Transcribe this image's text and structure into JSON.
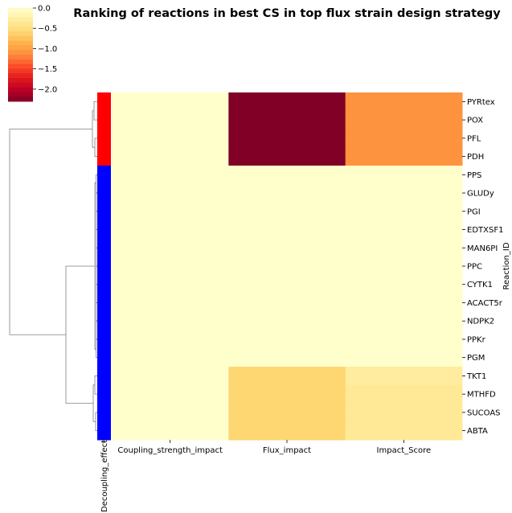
{
  "chart_data": {
    "type": "heatmap",
    "title": "Ranking of reactions in best CS in top flux strain design strategy",
    "ylabel": "Reaction_ID",
    "row_color_label": "Decoupling_effect",
    "columns": [
      "Coupling_strength_impact",
      "Flux_impact",
      "Impact_Score"
    ],
    "rows": [
      "PYRtex",
      "POX",
      "PFL",
      "PDH",
      "PPS",
      "GLUDy",
      "PGI",
      "EDTXSF1",
      "MAN6PI",
      "PPC",
      "CYTK1",
      "ACACT5r",
      "NDPK2",
      "PPKr",
      "PGM",
      "TKT1",
      "MTHFD",
      "SUCOAS",
      "ABTA"
    ],
    "values": [
      [
        0,
        -2.3,
        -1.1
      ],
      [
        0,
        -2.3,
        -1.1
      ],
      [
        0,
        -2.3,
        -1.1
      ],
      [
        0,
        -2.3,
        -1.1
      ],
      [
        0,
        0,
        0
      ],
      [
        0,
        0,
        0
      ],
      [
        0,
        0,
        0
      ],
      [
        0,
        0,
        0
      ],
      [
        0,
        0,
        0
      ],
      [
        0,
        0,
        0
      ],
      [
        0,
        0,
        0
      ],
      [
        0,
        0,
        0
      ],
      [
        0,
        0,
        0
      ],
      [
        0,
        0,
        0
      ],
      [
        0,
        0,
        0
      ],
      [
        0,
        -0.6,
        -0.3
      ],
      [
        0,
        -0.6,
        -0.35
      ],
      [
        0,
        -0.6,
        -0.35
      ],
      [
        0,
        -0.6,
        -0.35
      ]
    ],
    "row_colors": [
      "#ff0000",
      "#ff0000",
      "#ff0000",
      "#ff0000",
      "#0000ff",
      "#0000ff",
      "#0000ff",
      "#0000ff",
      "#0000ff",
      "#0000ff",
      "#0000ff",
      "#0000ff",
      "#0000ff",
      "#0000ff",
      "#0000ff",
      "#0000ff",
      "#0000ff",
      "#0000ff",
      "#0000ff"
    ],
    "colorscale": "YlOrRd_r",
    "vmin": -2.3,
    "vmax": 0.0,
    "colorbar_ticks": [
      "0.0",
      "−0.5",
      "−1.0",
      "−1.5",
      "−2.0"
    ],
    "colorbar_tick_values": [
      0.0,
      -0.5,
      -1.0,
      -1.5,
      -2.0
    ]
  }
}
